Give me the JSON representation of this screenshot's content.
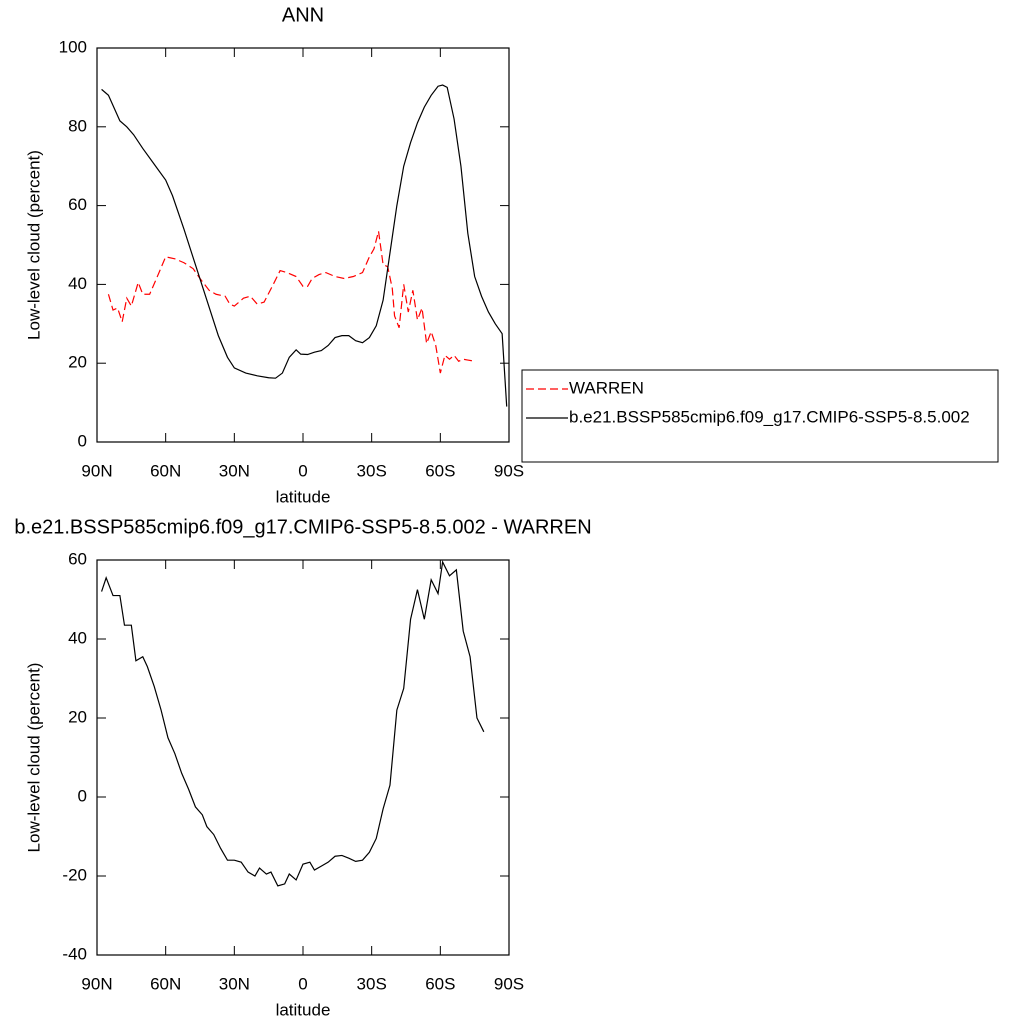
{
  "chart_data": [
    {
      "type": "line",
      "title": "ANN",
      "xlabel": "latitude",
      "ylabel": "Low-level cloud (percent)",
      "xlim": [
        90,
        -90
      ],
      "ylim": [
        0,
        100
      ],
      "xticks": [
        {
          "value": 90,
          "label": "90N"
        },
        {
          "value": 60,
          "label": "60N"
        },
        {
          "value": 30,
          "label": "30N"
        },
        0,
        {
          "value": -30,
          "label": "30S"
        },
        {
          "value": -60,
          "label": "60S"
        },
        {
          "value": -90,
          "label": "90S"
        }
      ],
      "yticks": [
        0,
        20,
        40,
        60,
        80,
        100
      ],
      "legend": "right",
      "series": [
        {
          "name": "WARREN",
          "color": "#ff0000",
          "dash": true,
          "x": [
            85,
            83,
            81,
            79,
            77,
            75,
            72,
            70,
            67,
            64,
            60,
            56,
            52,
            48,
            45,
            41,
            38,
            34,
            32,
            30,
            28,
            26,
            23,
            20,
            17,
            13,
            10,
            7,
            3,
            0,
            -2,
            -4,
            -7,
            -10,
            -14,
            -18,
            -22,
            -26,
            -29,
            -31,
            -33,
            -35,
            -37,
            -39,
            -40,
            -42,
            -44,
            -46,
            -48,
            -50,
            -52,
            -54,
            -56,
            -58,
            -60,
            -62,
            -64,
            -66,
            -68,
            -70,
            -72,
            -75
          ],
          "values": [
            37.5,
            33.5,
            34,
            30.5,
            36.5,
            34.5,
            40.5,
            37.5,
            37.5,
            41.5,
            47,
            46.5,
            45.5,
            44,
            41.5,
            38.5,
            37.5,
            37,
            35,
            34.5,
            35.5,
            36.5,
            37,
            35,
            35.5,
            40,
            43.5,
            43,
            42,
            39.5,
            39.5,
            41.5,
            42.5,
            43,
            42,
            41.5,
            42,
            43,
            47,
            49,
            53.5,
            45,
            44.5,
            39,
            32,
            29,
            40,
            33,
            38.5,
            31,
            34,
            25,
            28,
            24.5,
            17.5,
            22,
            21,
            22,
            20.5,
            21,
            20.8,
            20.5
          ]
        },
        {
          "name": "b.e21.BSSP585cmip6.f09_g17.CMIP6-SSP5-8.5.002",
          "color": "#000000",
          "dash": false,
          "x": [
            88,
            85,
            80,
            77,
            74,
            70,
            65,
            60,
            57,
            52,
            47,
            42,
            37,
            33,
            30,
            25,
            20,
            15,
            12,
            9,
            6,
            3,
            1,
            -2,
            -5,
            -8,
            -11,
            -14,
            -17,
            -20,
            -23,
            -26,
            -29,
            -32,
            -35,
            -38,
            -41,
            -44,
            -47,
            -50,
            -53,
            -56,
            -59,
            -61,
            -63,
            -66,
            -69,
            -72,
            -75,
            -78,
            -81,
            -84,
            -87,
            -89
          ],
          "values": [
            89.5,
            88,
            81.5,
            80,
            78,
            74.5,
            70.5,
            66.5,
            62.5,
            54,
            45,
            36,
            27,
            21.5,
            18.8,
            17.5,
            16.8,
            16.3,
            16.2,
            17.5,
            21.5,
            23.4,
            22.3,
            22.2,
            22.8,
            23.2,
            24.5,
            26.5,
            27,
            27,
            25.7,
            25.2,
            26.5,
            29.5,
            36,
            48,
            60,
            70,
            76,
            81,
            85,
            88,
            90.3,
            90.6,
            90,
            82,
            70,
            53,
            42,
            37,
            33,
            30,
            27.5,
            9
          ]
        }
      ]
    },
    {
      "type": "line",
      "title": "b.e21.BSSP585cmip6.f09_g17.CMIP6-SSP5-8.5.002 - WARREN",
      "xlabel": "latitude",
      "ylabel": "Low-level cloud (percent)",
      "xlim": [
        90,
        -90
      ],
      "ylim": [
        -40,
        60
      ],
      "xticks": [
        {
          "value": 90,
          "label": "90N"
        },
        {
          "value": 60,
          "label": "60N"
        },
        {
          "value": 30,
          "label": "30N"
        },
        0,
        {
          "value": -30,
          "label": "30S"
        },
        {
          "value": -60,
          "label": "60S"
        },
        {
          "value": -90,
          "label": "90S"
        }
      ],
      "yticks": [
        -40,
        -20,
        0,
        20,
        40,
        60
      ],
      "series": [
        {
          "color": "#000000",
          "dash": false,
          "x": [
            88,
            86,
            83,
            80,
            78,
            75,
            73,
            70,
            68,
            65,
            62,
            59,
            56,
            53,
            50,
            47,
            44,
            42,
            39,
            36,
            33,
            30,
            27,
            24,
            21,
            19,
            16,
            14,
            11,
            8,
            6,
            3,
            0,
            -3,
            -5,
            -8,
            -11,
            -14,
            -17,
            -20,
            -23,
            -26,
            -29,
            -32,
            -35,
            -38,
            -41,
            -44,
            -47,
            -50,
            -53,
            -56,
            -59,
            -61,
            -64,
            -67,
            -70,
            -73,
            -76,
            -79
          ],
          "values": [
            52,
            55.5,
            51,
            51,
            43.5,
            43.5,
            34.5,
            35.5,
            33,
            28,
            22,
            15,
            11,
            6,
            2,
            -2.5,
            -4.5,
            -7.5,
            -9.5,
            -13,
            -16,
            -16,
            -16.5,
            -19,
            -20,
            -18,
            -19.5,
            -19,
            -22.5,
            -22,
            -19.5,
            -21,
            -17,
            -16.5,
            -18.5,
            -17.5,
            -16.5,
            -15,
            -14.8,
            -15.5,
            -16.3,
            -16,
            -14,
            -10.5,
            -3,
            3,
            22,
            27.5,
            45,
            52.5,
            45,
            55,
            51.5,
            59.5,
            56,
            57.5,
            42,
            35.5,
            20,
            16.5
          ]
        }
      ]
    }
  ]
}
